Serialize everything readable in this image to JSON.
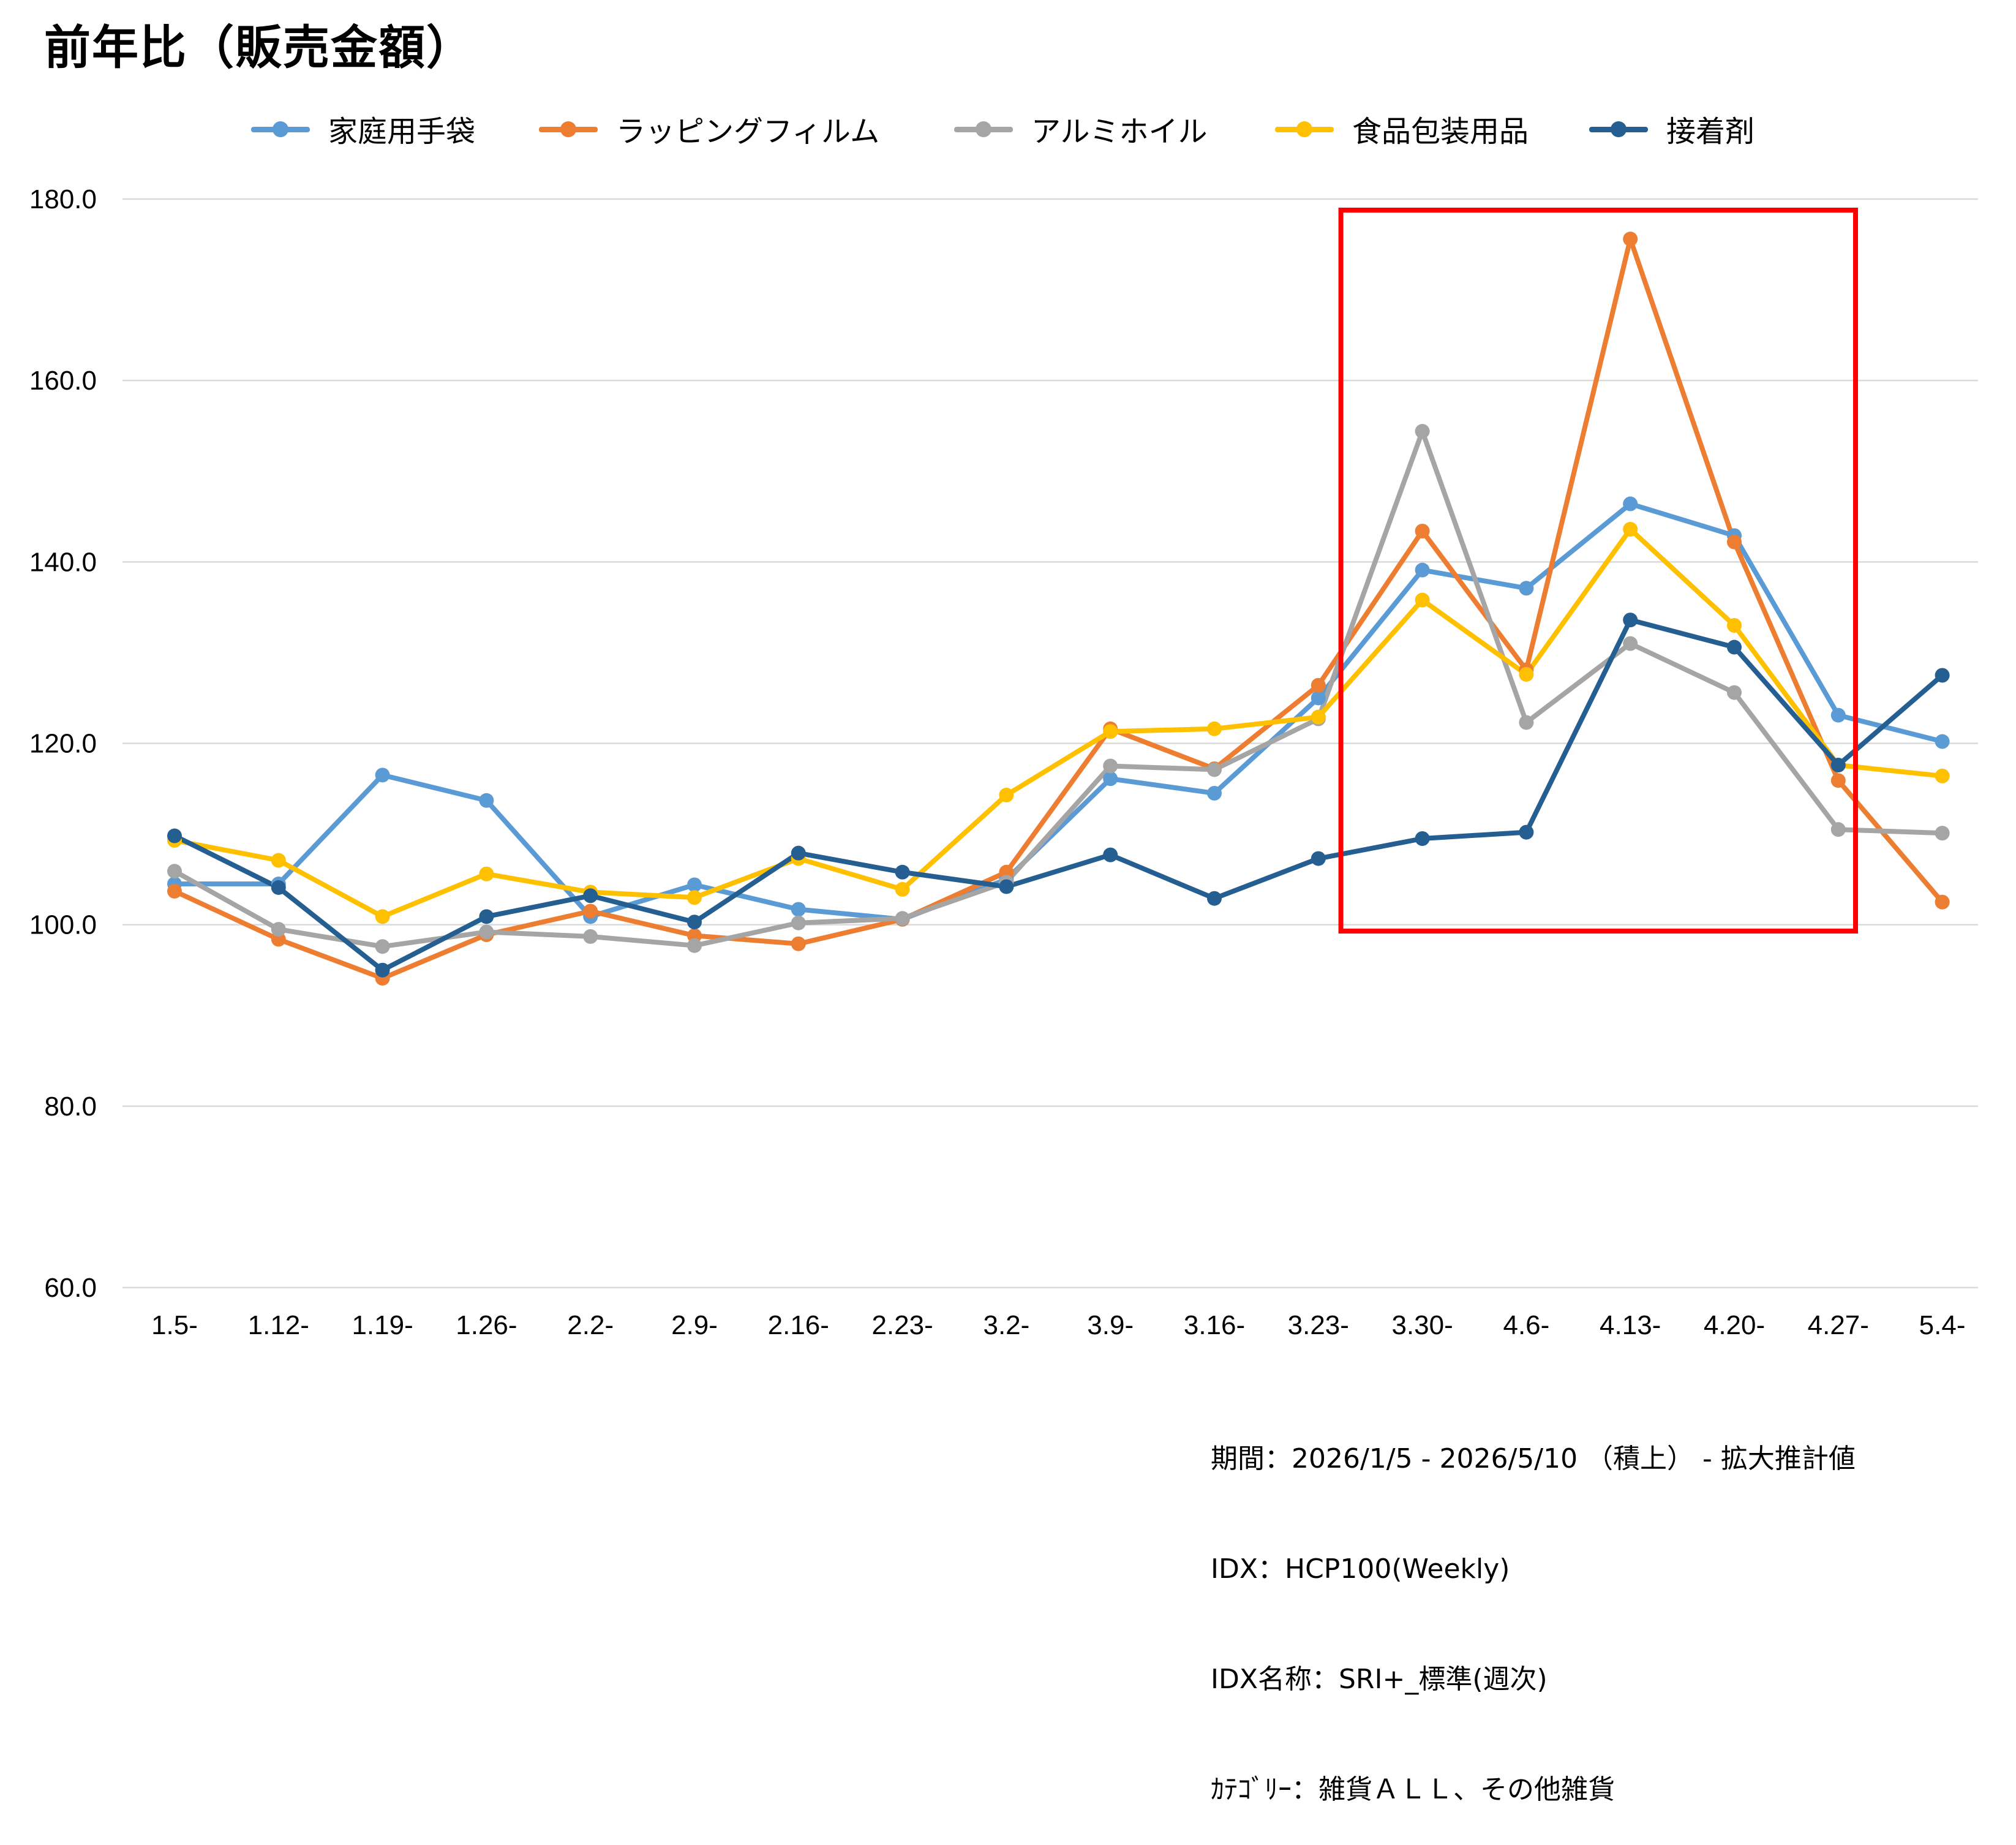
{
  "title": "前年比（販売金額）",
  "footnote": {
    "line1": "期間：2026/1/5 - 2026/5/10 （積上） - 拡大推計値",
    "line2": "IDX：HCP100(Weekly)",
    "line3": "IDX名称：SRI+_標準(週次)",
    "line4": "ｶﾃｺﾞﾘｰ：雑貨ＡＬＬ、その他雑貨"
  },
  "highlight": {
    "color": "#FF0000",
    "from_category": "3.30-",
    "to_category": "4.20-"
  },
  "chart_data": {
    "type": "line",
    "title": "前年比（販売金額）",
    "xlabel": "",
    "ylabel": "",
    "categories": [
      "1.5-",
      "1.12-",
      "1.19-",
      "1.26-",
      "2.2-",
      "2.9-",
      "2.16-",
      "2.23-",
      "3.2-",
      "3.9-",
      "3.16-",
      "3.23-",
      "3.30-",
      "4.6-",
      "4.13-",
      "4.20-",
      "4.27-",
      "5.4-"
    ],
    "ylim": [
      60,
      180
    ],
    "yticks": [
      60,
      80,
      100,
      120,
      140,
      160,
      180
    ],
    "ytick_labels": [
      "60.0",
      "80.0",
      "100.0",
      "120.0",
      "140.0",
      "160.0",
      "180.0"
    ],
    "grid": "horizontal",
    "legend_position": "top",
    "series": [
      {
        "name": "家庭用手袋",
        "color": "#5B9BD5",
        "values": [
          104.5,
          104.5,
          116.5,
          113.7,
          100.9,
          104.4,
          101.7,
          100.6,
          105.0,
          116.1,
          114.5,
          125.0,
          139.1,
          137.1,
          146.4,
          142.9,
          123.1,
          120.2
        ]
      },
      {
        "name": "ラッピングフィルム",
        "color": "#ED7D31",
        "values": [
          103.7,
          98.4,
          94.1,
          98.9,
          101.5,
          98.8,
          97.9,
          100.6,
          105.8,
          121.6,
          117.2,
          126.4,
          143.4,
          128.1,
          175.6,
          142.2,
          115.9,
          102.5
        ]
      },
      {
        "name": "アルミホイル",
        "color": "#A5A5A5",
        "values": [
          105.9,
          99.5,
          97.6,
          99.2,
          98.7,
          97.7,
          100.2,
          100.7,
          104.7,
          117.5,
          117.1,
          122.7,
          154.4,
          122.3,
          131.0,
          125.6,
          110.5,
          110.1
        ]
      },
      {
        "name": "食品包装用品",
        "color": "#FFC000",
        "values": [
          109.3,
          107.1,
          100.9,
          105.6,
          103.6,
          103.0,
          107.3,
          103.9,
          114.3,
          121.3,
          121.6,
          122.9,
          135.8,
          127.6,
          143.6,
          133.0,
          117.6,
          116.4
        ]
      },
      {
        "name": "接着剤",
        "color": "#255E91",
        "values": [
          109.8,
          104.1,
          95.0,
          100.9,
          103.2,
          100.3,
          107.9,
          105.8,
          104.2,
          107.7,
          102.9,
          107.3,
          109.5,
          110.2,
          133.6,
          130.6,
          117.6,
          127.5
        ]
      }
    ]
  }
}
